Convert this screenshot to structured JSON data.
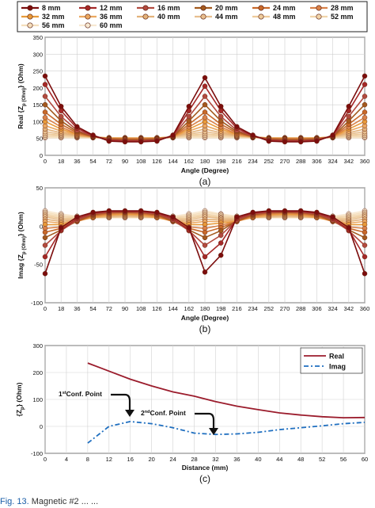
{
  "legend_top": {
    "entries": [
      "8 mm",
      "12 mm",
      "16 mm",
      "20 mm",
      "24 mm",
      "28 mm",
      "32 mm",
      "36 mm",
      "40 mm",
      "44 mm",
      "48 mm",
      "52 mm",
      "56 mm",
      "60 mm"
    ],
    "colors": [
      "#7c0d0d",
      "#a52828",
      "#b24a3f",
      "#a35a1e",
      "#c8692a",
      "#d9824a",
      "#e89a3a",
      "#eba861",
      "#e3b27a",
      "#e8bf8f",
      "#eecb9b",
      "#f1d4aa",
      "#f5dfbd",
      "#f8e9d2"
    ]
  },
  "caption_tail": {
    "text": "Magnetic #2 ... ...",
    "label": "Fig. 13."
  },
  "chart_data": [
    {
      "type": "line",
      "panel": "(a)",
      "xlabel": "Angle (Degree)",
      "ylabel": "Real {Z_p} (Ohm)",
      "ylim": [
        0,
        350
      ],
      "yticks": [
        0,
        50,
        100,
        150,
        200,
        250,
        300,
        350
      ],
      "xticks": [
        0,
        18,
        36,
        54,
        72,
        90,
        108,
        126,
        144,
        162,
        180,
        198,
        216,
        234,
        252,
        270,
        288,
        306,
        324,
        342,
        360
      ],
      "grid": true,
      "x": [
        0,
        18,
        36,
        54,
        72,
        90,
        108,
        126,
        144,
        162,
        180,
        198,
        216,
        234,
        252,
        270,
        288,
        306,
        324,
        342,
        360
      ],
      "series": [
        {
          "name": "8 mm",
          "values": [
            235,
            145,
            85,
            60,
            42,
            40,
            40,
            42,
            60,
            145,
            230,
            145,
            85,
            60,
            42,
            40,
            40,
            42,
            60,
            145,
            235
          ]
        },
        {
          "name": "12 mm",
          "values": [
            210,
            132,
            80,
            58,
            44,
            42,
            42,
            44,
            58,
            132,
            205,
            132,
            80,
            58,
            44,
            42,
            42,
            44,
            58,
            132,
            210
          ]
        },
        {
          "name": "16 mm",
          "values": [
            175,
            115,
            74,
            57,
            46,
            44,
            44,
            46,
            57,
            115,
            175,
            115,
            74,
            57,
            46,
            44,
            44,
            46,
            57,
            115,
            175
          ]
        },
        {
          "name": "20 mm",
          "values": [
            150,
            102,
            70,
            56,
            48,
            46,
            46,
            48,
            56,
            102,
            150,
            102,
            70,
            56,
            48,
            46,
            46,
            48,
            56,
            102,
            150
          ]
        },
        {
          "name": "24 mm",
          "values": [
            128,
            92,
            67,
            55,
            49,
            48,
            48,
            49,
            55,
            92,
            128,
            92,
            67,
            55,
            49,
            48,
            48,
            49,
            55,
            92,
            128
          ]
        },
        {
          "name": "28 mm",
          "values": [
            112,
            84,
            64,
            55,
            50,
            49,
            49,
            50,
            55,
            84,
            112,
            84,
            64,
            55,
            50,
            49,
            49,
            50,
            55,
            84,
            112
          ]
        },
        {
          "name": "32 mm",
          "values": [
            100,
            78,
            62,
            55,
            51,
            50,
            50,
            51,
            55,
            78,
            100,
            78,
            62,
            55,
            51,
            50,
            50,
            51,
            55,
            78,
            100
          ]
        },
        {
          "name": "36 mm",
          "values": [
            88,
            72,
            60,
            54,
            51,
            51,
            51,
            51,
            54,
            72,
            88,
            72,
            60,
            54,
            51,
            51,
            51,
            51,
            54,
            72,
            88
          ]
        },
        {
          "name": "40 mm",
          "values": [
            78,
            67,
            58,
            54,
            52,
            51,
            51,
            52,
            54,
            67,
            78,
            67,
            58,
            54,
            52,
            51,
            51,
            52,
            54,
            67,
            78
          ]
        },
        {
          "name": "44 mm",
          "values": [
            70,
            63,
            57,
            54,
            52,
            52,
            52,
            52,
            54,
            63,
            70,
            63,
            57,
            54,
            52,
            52,
            52,
            52,
            54,
            63,
            70
          ]
        },
        {
          "name": "48 mm",
          "values": [
            64,
            60,
            56,
            53,
            52,
            52,
            52,
            52,
            53,
            60,
            64,
            60,
            56,
            53,
            52,
            52,
            52,
            52,
            53,
            60,
            64
          ]
        },
        {
          "name": "52 mm",
          "values": [
            59,
            57,
            55,
            53,
            52,
            52,
            52,
            52,
            53,
            57,
            59,
            57,
            55,
            53,
            52,
            52,
            52,
            52,
            53,
            57,
            59
          ]
        },
        {
          "name": "56 mm",
          "values": [
            55,
            54,
            53,
            52,
            52,
            52,
            52,
            52,
            52,
            54,
            55,
            54,
            53,
            52,
            52,
            52,
            52,
            52,
            52,
            54,
            55
          ]
        },
        {
          "name": "60 mm",
          "values": [
            52,
            52,
            52,
            52,
            52,
            52,
            52,
            52,
            52,
            52,
            52,
            52,
            52,
            52,
            52,
            52,
            52,
            52,
            52,
            52,
            52
          ]
        }
      ]
    },
    {
      "type": "line",
      "panel": "(b)",
      "xlabel": "Angle (Degree)",
      "ylabel": "Imag {Z_p} (Ohm)",
      "ylim": [
        -100,
        50
      ],
      "yticks": [
        -100,
        -50,
        0,
        50
      ],
      "xticks": [
        0,
        18,
        36,
        54,
        72,
        90,
        108,
        126,
        144,
        162,
        180,
        198,
        216,
        234,
        252,
        270,
        288,
        306,
        324,
        342,
        360
      ],
      "grid": true,
      "x": [
        0,
        18,
        36,
        54,
        72,
        90,
        108,
        126,
        144,
        162,
        180,
        198,
        216,
        234,
        252,
        270,
        288,
        306,
        324,
        342,
        360
      ],
      "series": [
        {
          "name": "8 mm",
          "values": [
            -62,
            -2,
            12,
            18,
            20,
            20,
            20,
            18,
            12,
            -2,
            -60,
            -38,
            12,
            18,
            20,
            20,
            20,
            18,
            12,
            -2,
            -62
          ]
        },
        {
          "name": "12 mm",
          "values": [
            -40,
            -5,
            10,
            17,
            19,
            19,
            19,
            17,
            10,
            -5,
            -40,
            -22,
            10,
            17,
            19,
            19,
            19,
            17,
            10,
            -5,
            -40
          ]
        },
        {
          "name": "16 mm",
          "values": [
            -25,
            -6,
            8,
            16,
            18,
            19,
            18,
            16,
            8,
            -6,
            -25,
            -12,
            8,
            16,
            18,
            19,
            18,
            16,
            8,
            -6,
            -25
          ]
        },
        {
          "name": "20 mm",
          "values": [
            -15,
            -5,
            7,
            15,
            18,
            18,
            18,
            15,
            7,
            -5,
            -15,
            -6,
            7,
            15,
            18,
            18,
            18,
            15,
            7,
            -5,
            -15
          ]
        },
        {
          "name": "24 mm",
          "values": [
            -8,
            -3,
            6,
            14,
            17,
            18,
            17,
            14,
            6,
            -3,
            -8,
            -2,
            6,
            14,
            17,
            18,
            17,
            14,
            6,
            -3,
            -8
          ]
        },
        {
          "name": "28 mm",
          "values": [
            -3,
            -1,
            6,
            13,
            16,
            17,
            16,
            13,
            6,
            -1,
            -3,
            1,
            6,
            13,
            16,
            17,
            16,
            13,
            6,
            -1,
            -3
          ]
        },
        {
          "name": "32 mm",
          "values": [
            2,
            2,
            6,
            12,
            15,
            16,
            15,
            12,
            6,
            2,
            2,
            4,
            6,
            12,
            15,
            16,
            15,
            12,
            6,
            2,
            2
          ]
        },
        {
          "name": "36 mm",
          "values": [
            6,
            4,
            7,
            11,
            14,
            15,
            14,
            11,
            7,
            4,
            6,
            6,
            7,
            11,
            14,
            15,
            14,
            11,
            7,
            4,
            6
          ]
        },
        {
          "name": "40 mm",
          "values": [
            9,
            6,
            8,
            11,
            13,
            14,
            13,
            11,
            8,
            6,
            9,
            8,
            8,
            11,
            13,
            14,
            13,
            11,
            8,
            6,
            9
          ]
        },
        {
          "name": "44 mm",
          "values": [
            12,
            8,
            9,
            11,
            12,
            13,
            12,
            11,
            9,
            8,
            12,
            10,
            9,
            11,
            12,
            13,
            12,
            11,
            9,
            8,
            12
          ]
        },
        {
          "name": "48 mm",
          "values": [
            14,
            10,
            10,
            11,
            12,
            12,
            12,
            11,
            10,
            10,
            14,
            11,
            10,
            11,
            12,
            12,
            12,
            11,
            10,
            10,
            14
          ]
        },
        {
          "name": "52 mm",
          "values": [
            16,
            12,
            11,
            11,
            11,
            12,
            11,
            11,
            11,
            12,
            16,
            13,
            11,
            11,
            11,
            12,
            11,
            11,
            11,
            12,
            16
          ]
        },
        {
          "name": "56 mm",
          "values": [
            18,
            14,
            12,
            11,
            11,
            11,
            11,
            11,
            12,
            14,
            18,
            15,
            12,
            11,
            11,
            11,
            11,
            11,
            12,
            14,
            18
          ]
        },
        {
          "name": "60 mm",
          "values": [
            20,
            16,
            13,
            11,
            11,
            11,
            11,
            11,
            13,
            16,
            20,
            16,
            13,
            11,
            11,
            11,
            11,
            11,
            13,
            16,
            20
          ]
        }
      ]
    },
    {
      "type": "line",
      "panel": "(c)",
      "xlabel": "Distance (mm)",
      "ylabel": "{Z_p} (Ohm)",
      "ylim": [
        -100,
        300
      ],
      "yticks": [
        -100,
        0,
        100,
        200,
        300
      ],
      "xlim": [
        0,
        60
      ],
      "xticks": [
        0,
        4,
        8,
        12,
        16,
        20,
        24,
        28,
        32,
        36,
        40,
        44,
        48,
        52,
        56,
        60
      ],
      "grid": true,
      "legend": "top-right",
      "series": [
        {
          "name": "Real",
          "x": [
            8,
            12,
            16,
            20,
            24,
            28,
            32,
            36,
            40,
            44,
            48,
            52,
            56,
            60
          ],
          "values": [
            235,
            205,
            175,
            150,
            128,
            112,
            92,
            75,
            62,
            50,
            42,
            36,
            32,
            33
          ]
        },
        {
          "name": "Imag",
          "x": [
            8,
            12,
            16,
            20,
            24,
            28,
            32,
            36,
            40,
            44,
            48,
            52,
            56,
            60
          ],
          "values": [
            -62,
            0,
            18,
            10,
            -5,
            -25,
            -30,
            -28,
            -22,
            -12,
            -5,
            2,
            10,
            15
          ]
        }
      ],
      "annotations": [
        {
          "sup": "st",
          "pre": "1",
          "text": "Conf. Point"
        },
        {
          "sup": "nd",
          "pre": "2",
          "text": "Conf. Point"
        }
      ]
    }
  ]
}
